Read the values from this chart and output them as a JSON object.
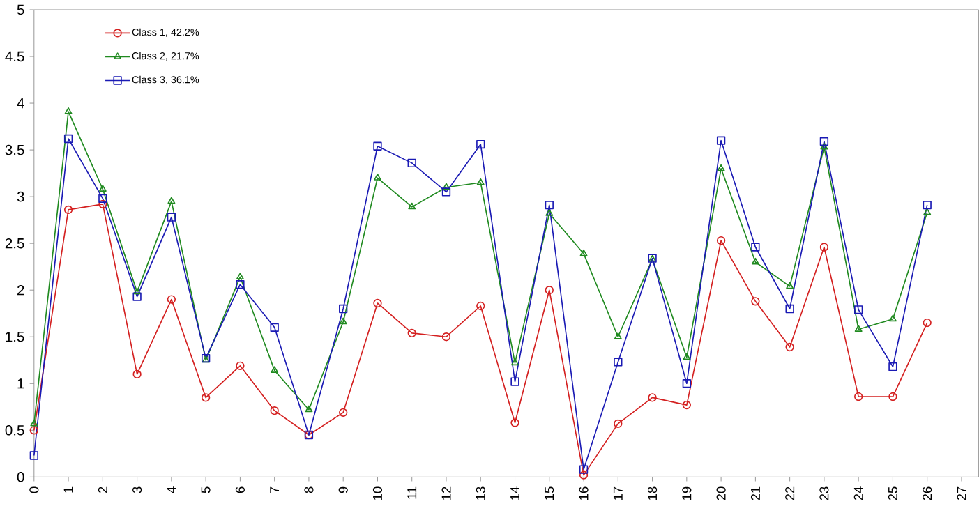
{
  "chart_data": {
    "type": "line",
    "x": [
      0,
      1,
      2,
      3,
      4,
      5,
      6,
      7,
      8,
      9,
      10,
      11,
      12,
      13,
      14,
      15,
      16,
      17,
      18,
      19,
      20,
      21,
      22,
      23,
      24,
      25,
      26
    ],
    "series": [
      {
        "name": "Class 1, 42.2%",
        "color": "#d42020",
        "marker": "circle",
        "values": [
          0.5,
          2.86,
          2.92,
          1.1,
          1.9,
          0.85,
          1.19,
          0.71,
          0.45,
          0.69,
          1.86,
          1.54,
          1.5,
          1.83,
          0.58,
          2.0,
          0.02,
          0.57,
          0.85,
          0.77,
          2.53,
          1.88,
          1.39,
          2.46,
          0.86,
          0.86,
          1.65
        ]
      },
      {
        "name": "Class 2, 21.7%",
        "color": "#208a20",
        "marker": "triangle",
        "values": [
          0.57,
          3.91,
          3.08,
          1.98,
          2.95,
          1.25,
          2.14,
          1.14,
          0.72,
          1.66,
          3.2,
          2.89,
          3.1,
          3.15,
          1.22,
          2.82,
          2.39,
          1.5,
          2.33,
          1.28,
          3.3,
          2.3,
          2.04,
          3.53,
          1.58,
          1.69,
          2.83
        ]
      },
      {
        "name": "Class 3, 36.1%",
        "color": "#1a1ab4",
        "marker": "square",
        "values": [
          0.23,
          3.62,
          2.98,
          1.93,
          2.78,
          1.27,
          2.06,
          1.6,
          0.45,
          1.8,
          3.54,
          3.36,
          3.05,
          3.56,
          1.02,
          2.91,
          0.08,
          1.23,
          2.34,
          1.0,
          3.6,
          2.46,
          1.8,
          3.59,
          1.79,
          1.18,
          2.91
        ]
      }
    ],
    "xlim": [
      0,
      27.5
    ],
    "xticks": [
      0,
      1,
      2,
      3,
      4,
      5,
      6,
      7,
      8,
      9,
      10,
      11,
      12,
      13,
      14,
      15,
      16,
      17,
      18,
      19,
      20,
      21,
      22,
      23,
      24,
      25,
      26,
      27
    ],
    "ylim": [
      0,
      5
    ],
    "yticks": [
      0,
      0.5,
      1,
      1.5,
      2,
      2.5,
      3,
      3.5,
      4,
      4.5,
      5
    ],
    "grid": false,
    "legend": "top left",
    "line_style": "solid"
  }
}
